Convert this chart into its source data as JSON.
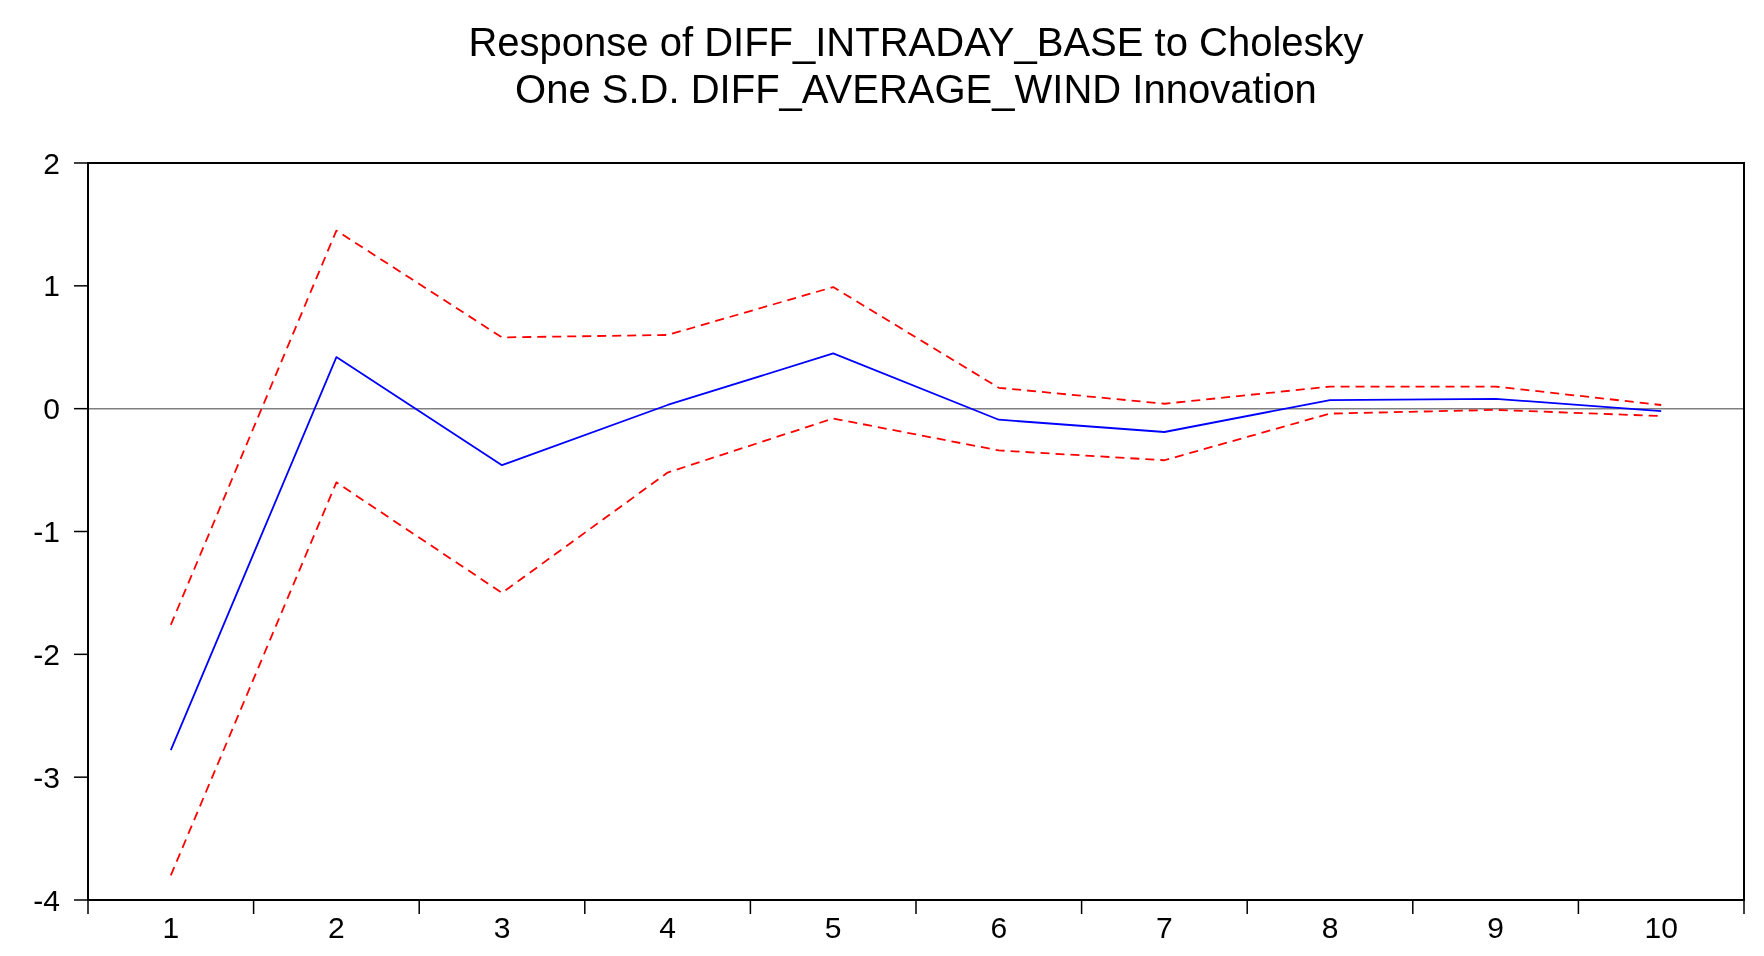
{
  "chart_data": {
    "type": "line",
    "title": "Response of DIFF_INTRADAY_BASE to Cholesky\nOne S.D. DIFF_AVERAGE_WIND Innovation",
    "categories": [
      "1",
      "2",
      "3",
      "4",
      "5",
      "6",
      "7",
      "8",
      "9",
      "10"
    ],
    "series": [
      {
        "color": "#0000ff",
        "line_style": "solid",
        "values": [
          -2.78,
          0.42,
          -0.46,
          0.03,
          0.45,
          -0.09,
          -0.19,
          0.07,
          0.08,
          -0.02
        ]
      },
      {
        "color": "#ff0000",
        "line_style": "dashed",
        "values": [
          -1.76,
          1.45,
          0.58,
          0.6,
          0.99,
          0.17,
          0.04,
          0.18,
          0.18,
          0.03
        ]
      },
      {
        "color": "#ff0000",
        "line_style": "dashed",
        "values": [
          -3.8,
          -0.6,
          -1.5,
          -0.52,
          -0.08,
          -0.34,
          -0.42,
          -0.04,
          -0.01,
          -0.06
        ]
      }
    ],
    "ylim": [
      -4,
      2
    ],
    "yticks": [
      -4,
      -3,
      -2,
      -1,
      0,
      1,
      2
    ],
    "ref_lines": [
      {
        "axis": "y",
        "value": 0,
        "color": "#808080"
      }
    ],
    "grid": false,
    "marker": "none"
  }
}
